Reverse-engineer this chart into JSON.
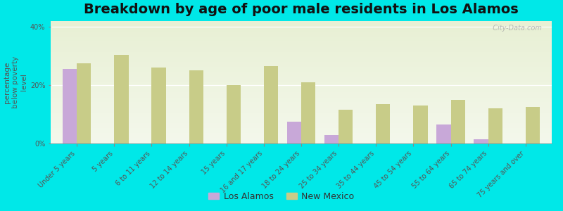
{
  "title": "Breakdown by age of poor male residents in Los Alamos",
  "ylabel": "percentage\nbelow poverty\nlevel",
  "figure_bg": "#00e8e8",
  "plot_bg_color": "#eef2e0",
  "categories": [
    "Under 5 years",
    "5 years",
    "6 to 11 years",
    "12 to 14 years",
    "15 years",
    "16 and 17 years",
    "18 to 24 years",
    "25 to 34 years",
    "35 to 44 years",
    "45 to 54 years",
    "55 to 64 years",
    "65 to 74 years",
    "75 years and over"
  ],
  "los_alamos": [
    25.5,
    0,
    0,
    0,
    0,
    0,
    7.5,
    3.0,
    0,
    0,
    6.5,
    1.5,
    0
  ],
  "new_mexico": [
    27.5,
    30.5,
    26.0,
    25.0,
    20.0,
    26.5,
    21.0,
    11.5,
    13.5,
    13.0,
    15.0,
    12.0,
    12.5
  ],
  "los_alamos_color": "#c8a8d8",
  "new_mexico_color": "#c8cc88",
  "ylim": [
    0,
    42
  ],
  "yticks": [
    0,
    20,
    40
  ],
  "ytick_labels": [
    "0%",
    "20%",
    "40%"
  ],
  "bar_width": 0.38,
  "title_fontsize": 14,
  "axis_label_fontsize": 7.5,
  "tick_fontsize": 7,
  "legend_fontsize": 9,
  "watermark": "  City-Data.com"
}
